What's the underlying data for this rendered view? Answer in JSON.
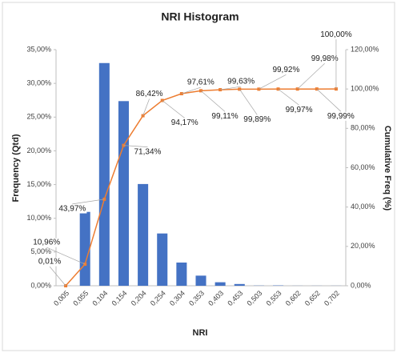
{
  "chart_data": {
    "type": "bar_line",
    "title": "NRI Histogram",
    "x_label": "NRI",
    "y_label": "Frequency (Qtd)",
    "y2_label": "Cumulative Freq (%)",
    "categories": [
      "0,005",
      "0,055",
      "0,104",
      "0,154",
      "0,204",
      "0,254",
      "0,304",
      "0,353",
      "0,403",
      "0,453",
      "0,503",
      "0,553",
      "0,602",
      "0,652",
      "0,702"
    ],
    "series": [
      {
        "name": "Frequency",
        "type": "bar",
        "color": "#4472c4",
        "values": [
          0.01,
          10.95,
          33.01,
          27.37,
          15.08,
          7.75,
          3.44,
          1.5,
          0.52,
          0.26,
          0.03,
          0.05,
          0.01,
          0.01,
          0.01
        ]
      },
      {
        "name": "Cumulative",
        "type": "line",
        "axis": "y2",
        "color": "#ed7d31",
        "values": [
          0.01,
          10.96,
          43.97,
          71.34,
          86.42,
          94.17,
          97.61,
          99.11,
          99.63,
          99.89,
          99.92,
          99.97,
          99.98,
          99.99,
          100
        ],
        "value_labels": [
          "0,01%",
          "10,96%",
          "43,97%",
          "71,34%",
          "86,42%",
          "94,17%",
          "97,61%",
          "99,11%",
          "99,63%",
          "99,89%",
          "99,92%",
          "99,97%",
          "99,98%",
          "99,99%",
          "100,00%"
        ]
      }
    ],
    "ylim": [
      0,
      35
    ],
    "yticks": [
      {
        "value": 0,
        "label": "0,00%"
      },
      {
        "value": 5,
        "label": "5,00%"
      },
      {
        "value": 10,
        "label": "10,00%"
      },
      {
        "value": 15,
        "label": "15,00%"
      },
      {
        "value": 20,
        "label": "20,00%"
      },
      {
        "value": 25,
        "label": "25,00%"
      },
      {
        "value": 30,
        "label": "30,00%"
      },
      {
        "value": 35,
        "label": "35,00%"
      }
    ],
    "y2lim": [
      0,
      120
    ],
    "y2ticks": [
      {
        "value": 0,
        "label": "0,00%"
      },
      {
        "value": 20,
        "label": "20,00%"
      },
      {
        "value": 40,
        "label": "40,00%"
      },
      {
        "value": 60,
        "label": "60,00%"
      },
      {
        "value": 80,
        "label": "80,00%"
      },
      {
        "value": 100,
        "label": "100,00%"
      },
      {
        "value": 120,
        "label": "120,00%"
      }
    ]
  }
}
